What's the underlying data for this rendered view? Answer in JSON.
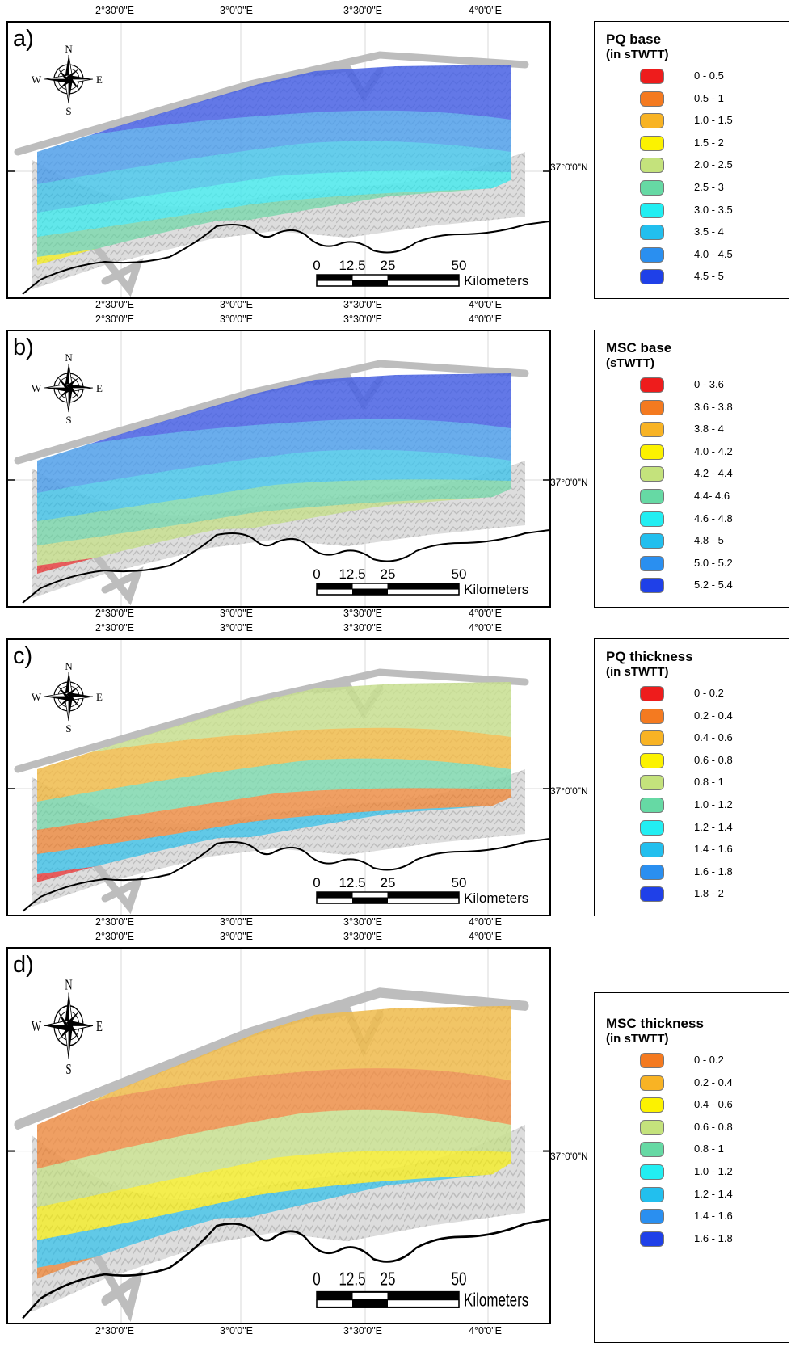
{
  "lon_ticks": [
    "2°30'0\"E",
    "3°0'0\"E",
    "3°30'0\"E",
    "4°0'0\"E"
  ],
  "lat_tick": "37°0'0\"N",
  "compass": {
    "n": "N",
    "s": "S",
    "e": "E",
    "w": "W",
    "icon": "compass-rose-icon"
  },
  "scale": {
    "labels": [
      "0",
      "12.5",
      "25",
      "50"
    ],
    "unit": "Kilometers"
  },
  "panels": [
    {
      "label": "a)",
      "legend_title": "PQ base",
      "legend_subtitle": "(in sTWTT)",
      "classes": [
        {
          "label": "0 - 0.5",
          "color": "#ee1c1c"
        },
        {
          "label": "0.5 - 1",
          "color": "#f47a20"
        },
        {
          "label": "1.0 - 1.5",
          "color": "#f8b324"
        },
        {
          "label": "1.5 - 2",
          "color": "#fcf200"
        },
        {
          "label": "2.0 - 2.5",
          "color": "#c4e27c"
        },
        {
          "label": "2.5 - 3",
          "color": "#66d9a4"
        },
        {
          "label": "3.0 - 3.5",
          "color": "#22eef2"
        },
        {
          "label": "3.5 - 4",
          "color": "#22bfee"
        },
        {
          "label": "4.0 - 4.5",
          "color": "#2a8ff0"
        },
        {
          "label": "4.5 - 5",
          "color": "#1f40e8"
        }
      ]
    },
    {
      "label": "b)",
      "legend_title": "MSC base",
      "legend_subtitle": "(sTWTT)",
      "classes": [
        {
          "label": "0 - 3.6",
          "color": "#ee1c1c"
        },
        {
          "label": "3.6 - 3.8",
          "color": "#f47a20"
        },
        {
          "label": "3.8 - 4",
          "color": "#f8b324"
        },
        {
          "label": "4.0 - 4.2",
          "color": "#fcf200"
        },
        {
          "label": "4.2 - 4.4",
          "color": "#c4e27c"
        },
        {
          "label": "4.4- 4.6",
          "color": "#66d9a4"
        },
        {
          "label": "4.6 - 4.8",
          "color": "#22eef2"
        },
        {
          "label": "4.8 - 5",
          "color": "#22bfee"
        },
        {
          "label": "5.0 - 5.2",
          "color": "#2a8ff0"
        },
        {
          "label": "5.2 - 5.4",
          "color": "#1f40e8"
        }
      ]
    },
    {
      "label": "c)",
      "legend_title": "PQ thickness",
      "legend_subtitle": "(in sTWTT)",
      "classes": [
        {
          "label": "0 - 0.2",
          "color": "#ee1c1c"
        },
        {
          "label": "0.2 - 0.4",
          "color": "#f47a20"
        },
        {
          "label": "0.4 - 0.6",
          "color": "#f8b324"
        },
        {
          "label": "0.6 - 0.8",
          "color": "#fcf200"
        },
        {
          "label": "0.8 - 1",
          "color": "#c4e27c"
        },
        {
          "label": "1.0 - 1.2",
          "color": "#66d9a4"
        },
        {
          "label": "1.2 - 1.4",
          "color": "#22eef2"
        },
        {
          "label": "1.4 - 1.6",
          "color": "#22bfee"
        },
        {
          "label": "1.6 - 1.8",
          "color": "#2a8ff0"
        },
        {
          "label": "1.8 - 2",
          "color": "#1f40e8"
        }
      ]
    },
    {
      "label": "d)",
      "legend_title": "MSC thickness",
      "legend_subtitle": "(in sTWTT)",
      "classes": [
        {
          "label": "0 - 0.2",
          "color": "#f47a20"
        },
        {
          "label": "0.2 - 0.4",
          "color": "#f8b324"
        },
        {
          "label": "0.4 - 0.6",
          "color": "#fcf200"
        },
        {
          "label": "0.6 - 0.8",
          "color": "#c4e27c"
        },
        {
          "label": "0.8 - 1",
          "color": "#66d9a4"
        },
        {
          "label": "1.0 - 1.2",
          "color": "#22eef2"
        },
        {
          "label": "1.2 - 1.4",
          "color": "#22bfee"
        },
        {
          "label": "1.4 - 1.6",
          "color": "#2a8ff0"
        },
        {
          "label": "1.6 - 1.8",
          "color": "#1f40e8"
        }
      ]
    }
  ]
}
